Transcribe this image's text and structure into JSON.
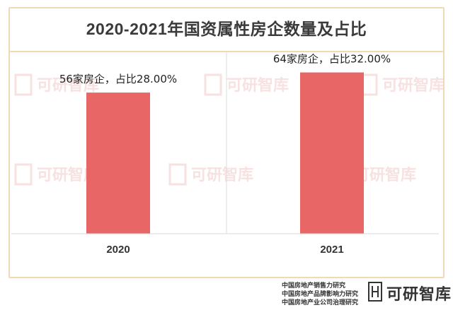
{
  "chart_data": {
    "type": "bar",
    "title": "2020-2021年国资属性房企数量及占比",
    "categories": [
      "2020",
      "2021"
    ],
    "values": [
      56,
      64
    ],
    "data_labels": [
      "56家房企，占比28.00%",
      "64家房企，占比32.00%"
    ],
    "share_percent": [
      28.0,
      32.0
    ],
    "ylim": [
      0,
      72
    ],
    "grid": false,
    "bar_color": "#e96666"
  },
  "watermark": {
    "text": "可研智库"
  },
  "footer": {
    "lines": [
      "中国房地产销售力研究",
      "中国房地产品牌影响力研究",
      "中国房地产业公司治理研究"
    ],
    "brand": "可研智库"
  },
  "colors": {
    "frame_border": "#f2d9b5",
    "bar": "#e96666",
    "watermark": "#f1c9c9"
  }
}
